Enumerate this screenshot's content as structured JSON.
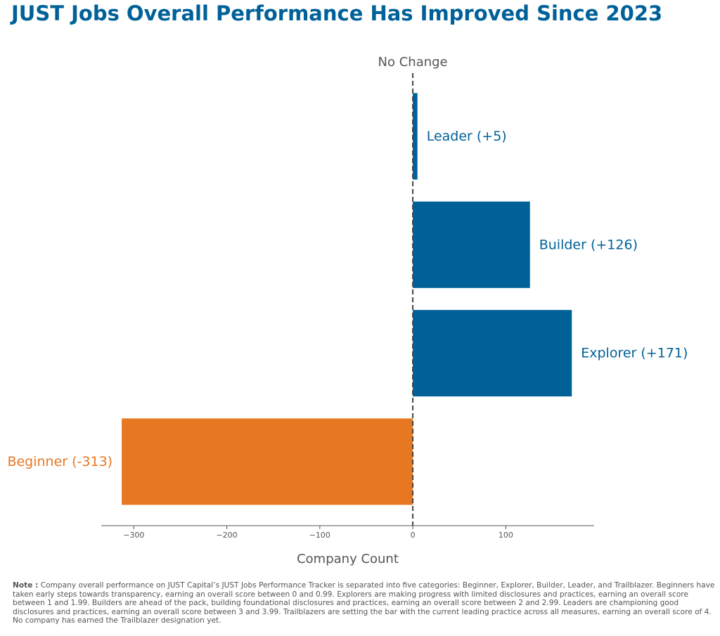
{
  "title": "JUST Jobs Overall Performance Has Improved Since 2023",
  "colors": {
    "positive": "#006199",
    "negative": "#e87722",
    "axis": "#555555",
    "title": "#006199"
  },
  "chart_data": {
    "type": "bar",
    "orientation": "horizontal",
    "categories": [
      "Leader",
      "Builder",
      "Explorer",
      "Beginner"
    ],
    "values": [
      5,
      126,
      171,
      -313
    ],
    "bar_labels": [
      "Leader (+5)",
      "Builder (+126)",
      "Explorer (+171)",
      "Beginner (-313)"
    ],
    "xlabel": "Company Count",
    "ylabel": "",
    "xlim": [
      -335,
      195
    ],
    "xticks": [
      -300,
      -200,
      -100,
      0,
      100
    ],
    "xtick_labels": [
      "−300",
      "−200",
      "−100",
      "0",
      "100"
    ],
    "reference_line": {
      "x": 0,
      "label": "No Change",
      "style": "dashed"
    },
    "grid": false,
    "legend": "none"
  },
  "note": {
    "label": "Note :",
    "text": "Company overall performance on JUST Capital’s JUST Jobs Performance Tracker is separated into five categories: Beginner, Explorer, Builder, Leader, and Trailblazer. Beginners have taken early steps towards transparency, earning an overall score between 0 and 0.99. Explorers are making progress with limited disclosures and practices, earning an overall score between 1 and 1.99. Builders are ahead of the pack, building foundational disclosures and practices, earning an overall score between 2 and 2.99. Leaders are championing good disclosures and practices, earning an overall score between 3 and 3.99. Trailblazers are setting the bar with the current leading practice across all measures, earning an overall score of 4. No company has earned the Trailblazer designation yet."
  }
}
